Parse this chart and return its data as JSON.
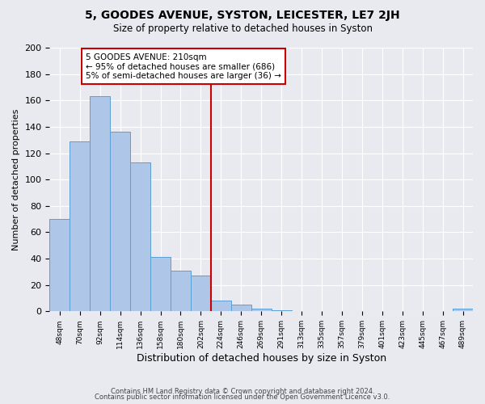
{
  "title": "5, GOODES AVENUE, SYSTON, LEICESTER, LE7 2JH",
  "subtitle": "Size of property relative to detached houses in Syston",
  "xlabel": "Distribution of detached houses by size in Syston",
  "ylabel": "Number of detached properties",
  "bar_heights": [
    70,
    129,
    163,
    136,
    113,
    41,
    31,
    27,
    8,
    5,
    2,
    1,
    0,
    0,
    0,
    0,
    0,
    0,
    0,
    0,
    2
  ],
  "bar_labels": [
    "48sqm",
    "70sqm",
    "92sqm",
    "114sqm",
    "136sqm",
    "158sqm",
    "180sqm",
    "202sqm",
    "224sqm",
    "246sqm",
    "269sqm",
    "291sqm",
    "313sqm",
    "335sqm",
    "357sqm",
    "379sqm",
    "401sqm",
    "423sqm",
    "445sqm",
    "467sqm",
    "489sqm"
  ],
  "bar_color": "#aec6e8",
  "bar_edge_color": "#5a9fd4",
  "background_color": "#e8eaf0",
  "grid_color": "#ffffff",
  "vline_x": 7.5,
  "vline_color": "#cc0000",
  "annotation_text": "5 GOODES AVENUE: 210sqm\n← 95% of detached houses are smaller (686)\n5% of semi-detached houses are larger (36) →",
  "annotation_box_color": "#ffffff",
  "annotation_box_edge_color": "#cc0000",
  "ylim": [
    0,
    200
  ],
  "yticks": [
    0,
    20,
    40,
    60,
    80,
    100,
    120,
    140,
    160,
    180,
    200
  ],
  "footer_line1": "Contains HM Land Registry data © Crown copyright and database right 2024.",
  "footer_line2": "Contains public sector information licensed under the Open Government Licence v3.0."
}
